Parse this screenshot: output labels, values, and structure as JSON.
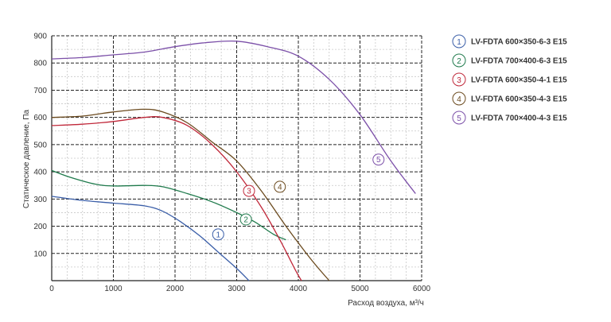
{
  "chart_data": {
    "type": "line",
    "xlabel": "Расход воздуха, м³/ч",
    "ylabel": "Статическое давление, Па",
    "xlim": [
      0,
      6000
    ],
    "ylim": [
      0,
      900
    ],
    "x_ticks": [
      0,
      1000,
      2000,
      3000,
      4000,
      5000,
      6000
    ],
    "y_ticks": [
      100,
      200,
      300,
      400,
      500,
      600,
      700,
      800,
      900
    ],
    "grid": true,
    "legend_position": "right",
    "series": [
      {
        "name": "LV-FDTA 600×350-6-3 E15",
        "marker": "1",
        "color": "#3a5ea8",
        "points": [
          [
            0,
            310
          ],
          [
            500,
            295
          ],
          [
            1000,
            285
          ],
          [
            1500,
            275
          ],
          [
            1800,
            255
          ],
          [
            2100,
            215
          ],
          [
            2400,
            165
          ],
          [
            2700,
            105
          ],
          [
            3000,
            45
          ],
          [
            3200,
            0
          ]
        ],
        "marker_at": [
          2700,
          170
        ]
      },
      {
        "name": "LV-FDTA 700×400-6-3 E15",
        "marker": "2",
        "color": "#1f7a4c",
        "points": [
          [
            0,
            405
          ],
          [
            300,
            380
          ],
          [
            700,
            355
          ],
          [
            1000,
            348
          ],
          [
            1500,
            350
          ],
          [
            1800,
            345
          ],
          [
            2200,
            320
          ],
          [
            2600,
            290
          ],
          [
            3000,
            250
          ],
          [
            3300,
            215
          ],
          [
            3600,
            170
          ],
          [
            3800,
            150
          ]
        ],
        "marker_at": [
          3150,
          225
        ]
      },
      {
        "name": "LV-FDTA 600×350-4-1 E15",
        "marker": "3",
        "color": "#c0283a",
        "points": [
          [
            0,
            570
          ],
          [
            500,
            575
          ],
          [
            1000,
            585
          ],
          [
            1500,
            600
          ],
          [
            1800,
            600
          ],
          [
            2200,
            570
          ],
          [
            2600,
            500
          ],
          [
            3000,
            400
          ],
          [
            3400,
            270
          ],
          [
            3700,
            150
          ],
          [
            3950,
            40
          ],
          [
            4050,
            0
          ]
        ],
        "marker_at": [
          3200,
          330
        ]
      },
      {
        "name": "LV-FDTA 600×350-4-3 E15",
        "marker": "4",
        "color": "#6b4a1e",
        "points": [
          [
            0,
            600
          ],
          [
            500,
            605
          ],
          [
            1000,
            620
          ],
          [
            1500,
            630
          ],
          [
            1800,
            620
          ],
          [
            2200,
            580
          ],
          [
            2600,
            510
          ],
          [
            3000,
            440
          ],
          [
            3400,
            330
          ],
          [
            3800,
            200
          ],
          [
            4200,
            80
          ],
          [
            4500,
            0
          ]
        ],
        "marker_at": [
          3700,
          345
        ]
      },
      {
        "name": "LV-FDTA 700×400-4-3 E15",
        "marker": "5",
        "color": "#7b4fa8",
        "points": [
          [
            0,
            815
          ],
          [
            500,
            820
          ],
          [
            1000,
            830
          ],
          [
            1500,
            840
          ],
          [
            2000,
            860
          ],
          [
            2500,
            875
          ],
          [
            3000,
            880
          ],
          [
            3500,
            860
          ],
          [
            4000,
            825
          ],
          [
            4500,
            740
          ],
          [
            5000,
            610
          ],
          [
            5500,
            440
          ],
          [
            5900,
            320
          ]
        ],
        "marker_at": [
          5300,
          445
        ]
      }
    ]
  }
}
